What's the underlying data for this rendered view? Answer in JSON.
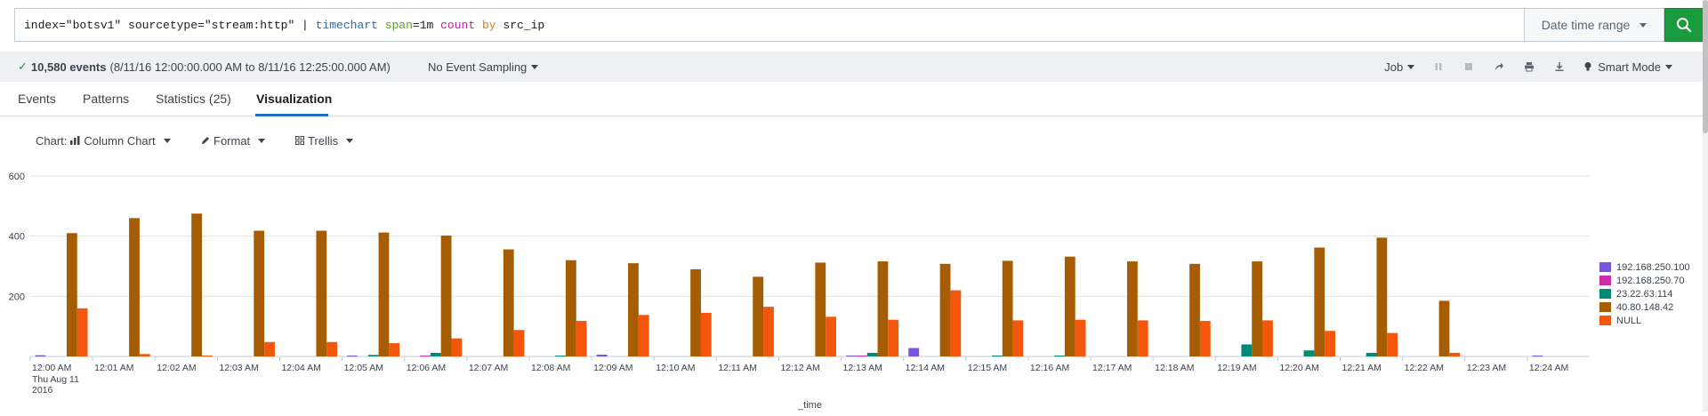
{
  "search": {
    "tokens": [
      {
        "text": "index=\"botsv1\" sourcetype=\"stream:http\" | ",
        "cls": "tok-kw"
      },
      {
        "text": "timechart",
        "cls": "tok-cmd"
      },
      {
        "text": " ",
        "cls": "tok-kw"
      },
      {
        "text": "span",
        "cls": "tok-arg"
      },
      {
        "text": "=1m ",
        "cls": "tok-kw"
      },
      {
        "text": "count",
        "cls": "tok-fn"
      },
      {
        "text": " ",
        "cls": "tok-kw"
      },
      {
        "text": "by",
        "cls": "tok-by"
      },
      {
        "text": " src_ip",
        "cls": "tok-kw"
      }
    ],
    "date_range_label": "Date time range",
    "search_icon": "search-icon"
  },
  "status": {
    "events_count": "10,580 events",
    "time_range": "(8/11/16 12:00:00.000 AM to 8/11/16 12:25:00.000 AM)",
    "sampling": "No Event Sampling",
    "job_label": "Job",
    "mode_label": "Smart Mode",
    "icons": [
      "pause-icon",
      "stop-icon",
      "share-icon",
      "print-icon",
      "export-icon",
      "bulb-icon"
    ]
  },
  "tabs": [
    {
      "label": "Events"
    },
    {
      "label": "Patterns"
    },
    {
      "label": "Statistics (25)"
    },
    {
      "label": "Visualization"
    }
  ],
  "viz": {
    "chart_label": "Chart:",
    "chart_type": "Column Chart",
    "format_label": "Format",
    "trellis_label": "Trellis"
  },
  "chart_data": {
    "type": "bar",
    "xlabel": "_time",
    "ylabel": "",
    "ylim": [
      0,
      600
    ],
    "yticks": [
      200,
      400,
      600
    ],
    "grid": true,
    "legend_position": "right",
    "categories": [
      "12:00 AM",
      "12:01 AM",
      "12:02 AM",
      "12:03 AM",
      "12:04 AM",
      "12:05 AM",
      "12:06 AM",
      "12:07 AM",
      "12:08 AM",
      "12:09 AM",
      "12:10 AM",
      "12:11 AM",
      "12:12 AM",
      "12:13 AM",
      "12:14 AM",
      "12:15 AM",
      "12:16 AM",
      "12:17 AM",
      "12:18 AM",
      "12:19 AM",
      "12:20 AM",
      "12:21 AM",
      "12:22 AM",
      "12:23 AM",
      "12:24 AM"
    ],
    "first_tick_sublabel": [
      "Thu Aug 11",
      "2016"
    ],
    "series": [
      {
        "name": "192.168.250.100",
        "color": "#7b56db",
        "values": [
          4,
          0,
          0,
          0,
          0,
          3,
          0,
          0,
          0,
          6,
          0,
          0,
          0,
          3,
          28,
          0,
          0,
          0,
          0,
          0,
          0,
          0,
          0,
          0,
          3
        ]
      },
      {
        "name": "192.168.250.70",
        "color": "#cc2fa5",
        "values": [
          0,
          0,
          0,
          0,
          0,
          0,
          3,
          0,
          0,
          0,
          0,
          0,
          0,
          3,
          0,
          0,
          0,
          0,
          0,
          0,
          0,
          0,
          0,
          0,
          0
        ]
      },
      {
        "name": "23.22.63.114",
        "color": "#00897b",
        "values": [
          0,
          0,
          0,
          0,
          0,
          5,
          12,
          0,
          3,
          0,
          0,
          0,
          0,
          12,
          0,
          3,
          3,
          0,
          0,
          40,
          20,
          12,
          0,
          0,
          0
        ]
      },
      {
        "name": "40.80.148.42",
        "color": "#a65c00",
        "values": [
          410,
          460,
          475,
          418,
          418,
          412,
          402,
          356,
          320,
          310,
          290,
          265,
          312,
          316,
          308,
          318,
          332,
          316,
          308,
          316,
          362,
          395,
          185,
          0,
          0
        ]
      },
      {
        "name": "NULL",
        "color": "#f4560c",
        "values": [
          160,
          8,
          3,
          48,
          48,
          44,
          60,
          88,
          118,
          138,
          145,
          165,
          132,
          122,
          220,
          120,
          122,
          120,
          118,
          120,
          85,
          78,
          12,
          0,
          0
        ]
      }
    ]
  }
}
